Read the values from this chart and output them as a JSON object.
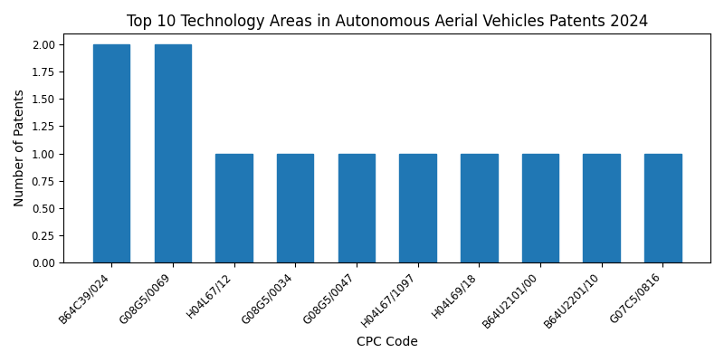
{
  "title": "Top 10 Technology Areas in Autonomous Aerial Vehicles Patents 2024",
  "xlabel": "CPC Code",
  "ylabel": "Number of Patents",
  "categories": [
    "B64C39/024",
    "G08G5/0069",
    "H04L67/12",
    "G08G5/0034",
    "G08G5/0047",
    "H04L67/1097",
    "H04L69/18",
    "B64U2101/00",
    "B64U2201/10",
    "G07C5/0816"
  ],
  "values": [
    2,
    2,
    1,
    1,
    1,
    1,
    1,
    1,
    1,
    1
  ],
  "bar_color": "#2077b4",
  "ylim": [
    0,
    2.1
  ],
  "yticks": [
    0.0,
    0.25,
    0.5,
    0.75,
    1.0,
    1.25,
    1.5,
    1.75,
    2.0
  ],
  "figsize": [
    8.0,
    4.0
  ],
  "dpi": 100,
  "title_fontsize": 12,
  "label_fontsize": 10,
  "tick_fontsize": 8.5,
  "background_color": "#ffffff"
}
